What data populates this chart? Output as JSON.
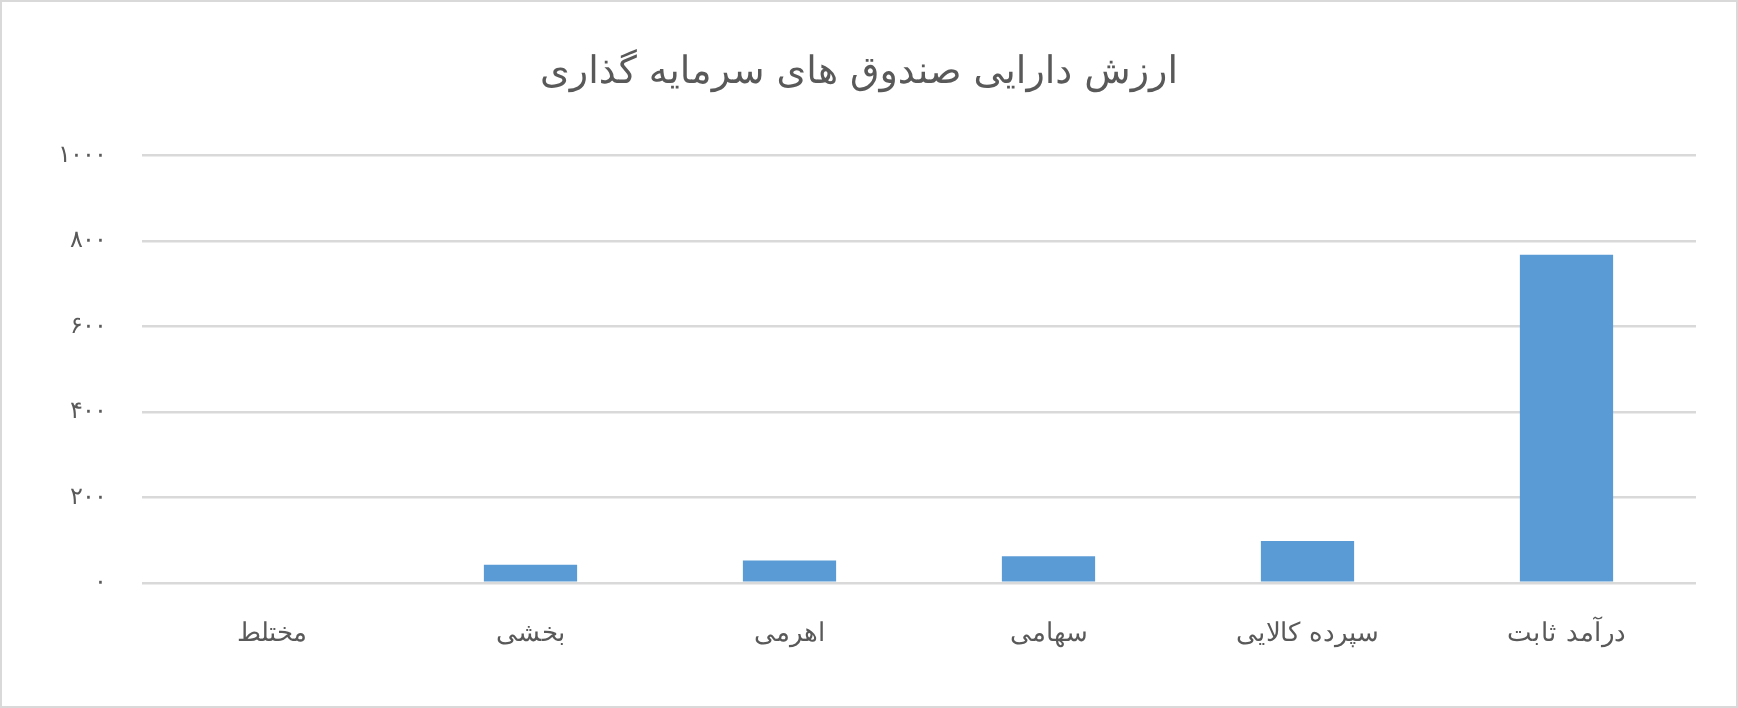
{
  "chart_data": {
    "type": "bar",
    "title": "ارزش دارایی صندوق های سرمایه گذاری",
    "categories": [
      "مختلط",
      "بخشی",
      "اهرمی",
      "سهامی",
      "سپرده کالایی",
      "درآمد ثابت"
    ],
    "values": [
      0,
      42,
      52,
      62,
      98,
      768
    ],
    "color": "#5b9bd5",
    "ylim": [
      0,
      1000
    ],
    "yticks": [
      {
        "value": 0,
        "label": "۰"
      },
      {
        "value": 200,
        "label": "۲۰۰"
      },
      {
        "value": 400,
        "label": "۴۰۰"
      },
      {
        "value": 600,
        "label": "۶۰۰"
      },
      {
        "value": 800,
        "label": "۸۰۰"
      },
      {
        "value": 1000,
        "label": "۱۰۰۰"
      }
    ],
    "grid": "y",
    "legend": false
  }
}
